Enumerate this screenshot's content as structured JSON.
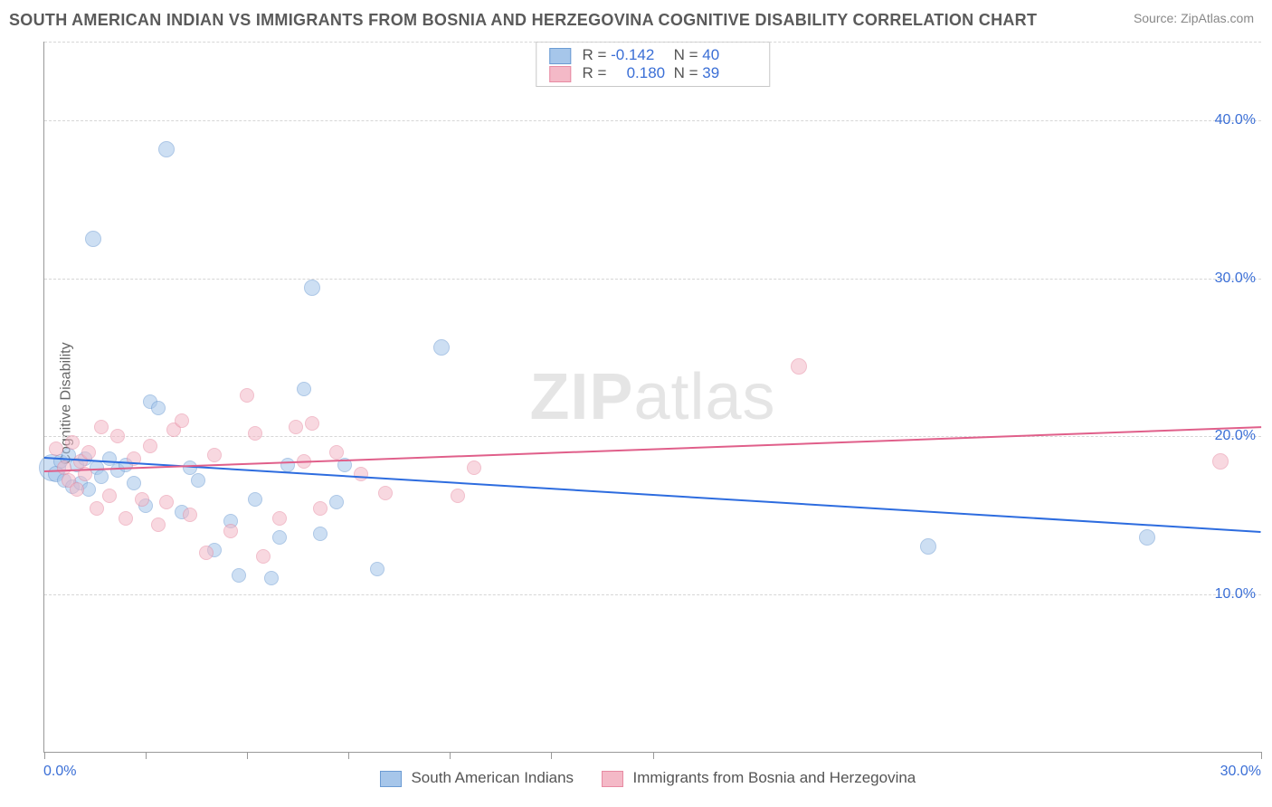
{
  "title": "SOUTH AMERICAN INDIAN VS IMMIGRANTS FROM BOSNIA AND HERZEGOVINA COGNITIVE DISABILITY CORRELATION CHART",
  "source": "Source: ZipAtlas.com",
  "watermark_a": "ZIP",
  "watermark_b": "atlas",
  "ylabel": "Cognitive Disability",
  "chart": {
    "type": "scatter",
    "xlim": [
      0,
      30
    ],
    "ylim": [
      0,
      45
    ],
    "xticks": [
      0,
      2.5,
      5,
      7.5,
      10,
      12.5,
      15,
      30
    ],
    "xlabel_first": "0.0%",
    "xlabel_last": "30.0%",
    "yticks": [
      {
        "v": 10,
        "label": "10.0%"
      },
      {
        "v": 20,
        "label": "20.0%"
      },
      {
        "v": 30,
        "label": "30.0%"
      },
      {
        "v": 40,
        "label": "40.0%"
      }
    ],
    "grid_color": "#d6d6d6",
    "axis_color": "#999999",
    "tick_label_color": "#3b6fd6",
    "background": "#ffffff",
    "series": [
      {
        "key": "sai",
        "name": "South American Indians",
        "fill": "#a6c6ea",
        "stroke": "#6b9bd3",
        "fill_opacity": 0.55,
        "trend_color": "#2d6cdf",
        "R": "-0.142",
        "N": "40",
        "trend": {
          "x1": 0,
          "y1": 18.7,
          "x2": 30,
          "y2": 14.0
        },
        "points": [
          {
            "x": 0.2,
            "y": 18.0,
            "r": 14
          },
          {
            "x": 0.3,
            "y": 17.6,
            "r": 8
          },
          {
            "x": 0.4,
            "y": 18.4,
            "r": 7
          },
          {
            "x": 0.5,
            "y": 17.2,
            "r": 7
          },
          {
            "x": 0.6,
            "y": 18.8,
            "r": 7
          },
          {
            "x": 0.7,
            "y": 16.8,
            "r": 7
          },
          {
            "x": 0.8,
            "y": 18.2,
            "r": 7
          },
          {
            "x": 0.9,
            "y": 17.0,
            "r": 7
          },
          {
            "x": 1.0,
            "y": 18.6,
            "r": 7
          },
          {
            "x": 1.1,
            "y": 16.6,
            "r": 7
          },
          {
            "x": 1.2,
            "y": 32.5,
            "r": 8
          },
          {
            "x": 1.3,
            "y": 18.0,
            "r": 7
          },
          {
            "x": 1.4,
            "y": 17.4,
            "r": 7
          },
          {
            "x": 1.6,
            "y": 18.6,
            "r": 7
          },
          {
            "x": 1.8,
            "y": 17.8,
            "r": 7
          },
          {
            "x": 2.0,
            "y": 18.2,
            "r": 7
          },
          {
            "x": 2.2,
            "y": 17.0,
            "r": 7
          },
          {
            "x": 2.5,
            "y": 15.6,
            "r": 7
          },
          {
            "x": 2.6,
            "y": 22.2,
            "r": 7
          },
          {
            "x": 2.8,
            "y": 21.8,
            "r": 7
          },
          {
            "x": 3.0,
            "y": 38.2,
            "r": 8
          },
          {
            "x": 3.4,
            "y": 15.2,
            "r": 7
          },
          {
            "x": 3.6,
            "y": 18.0,
            "r": 7
          },
          {
            "x": 3.8,
            "y": 17.2,
            "r": 7
          },
          {
            "x": 4.2,
            "y": 12.8,
            "r": 7
          },
          {
            "x": 4.6,
            "y": 14.6,
            "r": 7
          },
          {
            "x": 4.8,
            "y": 11.2,
            "r": 7
          },
          {
            "x": 5.2,
            "y": 16.0,
            "r": 7
          },
          {
            "x": 5.6,
            "y": 11.0,
            "r": 7
          },
          {
            "x": 5.8,
            "y": 13.6,
            "r": 7
          },
          {
            "x": 6.0,
            "y": 18.2,
            "r": 7
          },
          {
            "x": 6.4,
            "y": 23.0,
            "r": 7
          },
          {
            "x": 6.6,
            "y": 29.4,
            "r": 8
          },
          {
            "x": 6.8,
            "y": 13.8,
            "r": 7
          },
          {
            "x": 7.2,
            "y": 15.8,
            "r": 7
          },
          {
            "x": 7.4,
            "y": 18.2,
            "r": 7
          },
          {
            "x": 8.2,
            "y": 11.6,
            "r": 7
          },
          {
            "x": 9.8,
            "y": 25.6,
            "r": 8
          },
          {
            "x": 21.8,
            "y": 13.0,
            "r": 8
          },
          {
            "x": 27.2,
            "y": 13.6,
            "r": 8
          }
        ]
      },
      {
        "key": "bih",
        "name": "Immigrants from Bosnia and Herzegovina",
        "fill": "#f4b9c7",
        "stroke": "#e78aa2",
        "fill_opacity": 0.55,
        "trend_color": "#e05f8a",
        "R": "0.180",
        "N": "39",
        "trend": {
          "x1": 0,
          "y1": 17.8,
          "x2": 30,
          "y2": 20.6
        },
        "points": [
          {
            "x": 0.3,
            "y": 19.2,
            "r": 7
          },
          {
            "x": 0.5,
            "y": 18.0,
            "r": 7
          },
          {
            "x": 0.6,
            "y": 17.2,
            "r": 7
          },
          {
            "x": 0.7,
            "y": 19.6,
            "r": 7
          },
          {
            "x": 0.8,
            "y": 16.6,
            "r": 7
          },
          {
            "x": 0.9,
            "y": 18.4,
            "r": 7
          },
          {
            "x": 1.0,
            "y": 17.6,
            "r": 7
          },
          {
            "x": 1.1,
            "y": 19.0,
            "r": 7
          },
          {
            "x": 1.3,
            "y": 15.4,
            "r": 7
          },
          {
            "x": 1.4,
            "y": 20.6,
            "r": 7
          },
          {
            "x": 1.6,
            "y": 16.2,
            "r": 7
          },
          {
            "x": 1.8,
            "y": 20.0,
            "r": 7
          },
          {
            "x": 2.0,
            "y": 14.8,
            "r": 7
          },
          {
            "x": 2.2,
            "y": 18.6,
            "r": 7
          },
          {
            "x": 2.4,
            "y": 16.0,
            "r": 7
          },
          {
            "x": 2.6,
            "y": 19.4,
            "r": 7
          },
          {
            "x": 2.8,
            "y": 14.4,
            "r": 7
          },
          {
            "x": 3.0,
            "y": 15.8,
            "r": 7
          },
          {
            "x": 3.2,
            "y": 20.4,
            "r": 7
          },
          {
            "x": 3.4,
            "y": 21.0,
            "r": 7
          },
          {
            "x": 3.6,
            "y": 15.0,
            "r": 7
          },
          {
            "x": 4.0,
            "y": 12.6,
            "r": 7
          },
          {
            "x": 4.2,
            "y": 18.8,
            "r": 7
          },
          {
            "x": 4.6,
            "y": 14.0,
            "r": 7
          },
          {
            "x": 5.0,
            "y": 22.6,
            "r": 7
          },
          {
            "x": 5.2,
            "y": 20.2,
            "r": 7
          },
          {
            "x": 5.4,
            "y": 12.4,
            "r": 7
          },
          {
            "x": 5.8,
            "y": 14.8,
            "r": 7
          },
          {
            "x": 6.2,
            "y": 20.6,
            "r": 7
          },
          {
            "x": 6.4,
            "y": 18.4,
            "r": 7
          },
          {
            "x": 6.6,
            "y": 20.8,
            "r": 7
          },
          {
            "x": 6.8,
            "y": 15.4,
            "r": 7
          },
          {
            "x": 7.2,
            "y": 19.0,
            "r": 7
          },
          {
            "x": 7.8,
            "y": 17.6,
            "r": 7
          },
          {
            "x": 8.4,
            "y": 16.4,
            "r": 7
          },
          {
            "x": 10.2,
            "y": 16.2,
            "r": 7
          },
          {
            "x": 10.6,
            "y": 18.0,
            "r": 7
          },
          {
            "x": 18.6,
            "y": 24.4,
            "r": 8
          },
          {
            "x": 29.0,
            "y": 18.4,
            "r": 8
          }
        ]
      }
    ]
  },
  "legend_bottom": [
    {
      "swatch_fill": "#a6c6ea",
      "swatch_stroke": "#6b9bd3",
      "label": "South American Indians"
    },
    {
      "swatch_fill": "#f4b9c7",
      "swatch_stroke": "#e78aa2",
      "label": "Immigrants from Bosnia and Herzegovina"
    }
  ]
}
